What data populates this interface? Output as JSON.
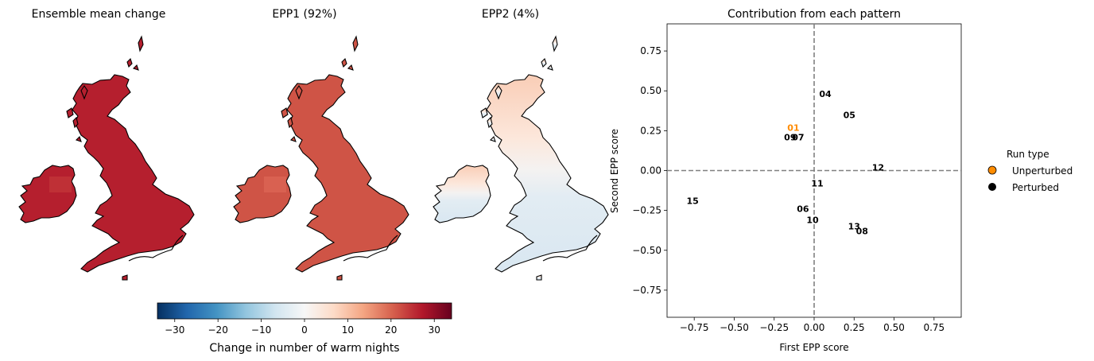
{
  "maps": [
    {
      "title": "Ensemble mean change",
      "tone": "dark-red"
    },
    {
      "title": "EPP1 (92%)",
      "tone": "mid-red"
    },
    {
      "title": "EPP2 (4%)",
      "tone": "diverging-light"
    }
  ],
  "colorbar": {
    "label": "Change in number of warm nights",
    "ticks": [
      "−30",
      "−20",
      "−10",
      "0",
      "10",
      "20",
      "30"
    ],
    "tick_values": [
      -30,
      -20,
      -10,
      0,
      10,
      20,
      30
    ],
    "range": [
      -34,
      34
    ],
    "colormap": "RdBu_r",
    "stops": [
      "#053061",
      "#2166ac",
      "#4393c3",
      "#92c5de",
      "#d1e5f0",
      "#f7f7f7",
      "#fddbc7",
      "#f4a582",
      "#d6604d",
      "#b2182b",
      "#67001f"
    ]
  },
  "colors": {
    "map_dark_red": "#b51f2e",
    "map_mid_red": "#cf5446",
    "map_light_red": "#f9d3bf",
    "map_light_blue": "#dfeaf2",
    "map_white": "#f7f7f7",
    "unperturbed": "#ff8c00",
    "perturbed": "#000000"
  },
  "chart_data": {
    "type": "scatter",
    "title": "Contribution from each pattern",
    "xlabel": "First EPP score",
    "ylabel": "Second EPP score",
    "xlim": [
      -0.92,
      0.92
    ],
    "ylim": [
      -0.92,
      0.92
    ],
    "xticks": [
      -0.75,
      -0.5,
      -0.25,
      0.0,
      0.25,
      0.5,
      0.75
    ],
    "yticks": [
      -0.75,
      -0.5,
      -0.25,
      0.0,
      0.25,
      0.5,
      0.75
    ],
    "xtick_labels": [
      "−0.75",
      "−0.50",
      "−0.25",
      "0.00",
      "0.25",
      "0.50",
      "0.75"
    ],
    "ytick_labels": [
      "−0.75",
      "−0.50",
      "−0.25",
      "0.00",
      "0.25",
      "0.50",
      "0.75"
    ],
    "reference_lines": {
      "x": 0.0,
      "y": 0.0,
      "style": "dashed",
      "color": "#808080"
    },
    "grid": false,
    "legend": {
      "title": "Run type",
      "placement": "right",
      "entries": [
        {
          "name": "Unperturbed",
          "color": "#ff8c00"
        },
        {
          "name": "Perturbed",
          "color": "#000000"
        }
      ]
    },
    "points": [
      {
        "label": "01",
        "x": -0.13,
        "y": 0.27,
        "type": "Unperturbed"
      },
      {
        "label": "04",
        "x": 0.07,
        "y": 0.48,
        "type": "Perturbed"
      },
      {
        "label": "05",
        "x": 0.22,
        "y": 0.35,
        "type": "Perturbed"
      },
      {
        "label": "07",
        "x": -0.1,
        "y": 0.21,
        "type": "Perturbed"
      },
      {
        "label": "09",
        "x": -0.15,
        "y": 0.21,
        "type": "Perturbed"
      },
      {
        "label": "12",
        "x": 0.4,
        "y": 0.02,
        "type": "Perturbed"
      },
      {
        "label": "11",
        "x": 0.02,
        "y": -0.08,
        "type": "Perturbed"
      },
      {
        "label": "15",
        "x": -0.76,
        "y": -0.19,
        "type": "Perturbed"
      },
      {
        "label": "06",
        "x": -0.07,
        "y": -0.24,
        "type": "Perturbed"
      },
      {
        "label": "10",
        "x": -0.01,
        "y": -0.31,
        "type": "Perturbed"
      },
      {
        "label": "13",
        "x": 0.25,
        "y": -0.35,
        "type": "Perturbed"
      },
      {
        "label": "08",
        "x": 0.3,
        "y": -0.38,
        "type": "Perturbed"
      }
    ]
  }
}
